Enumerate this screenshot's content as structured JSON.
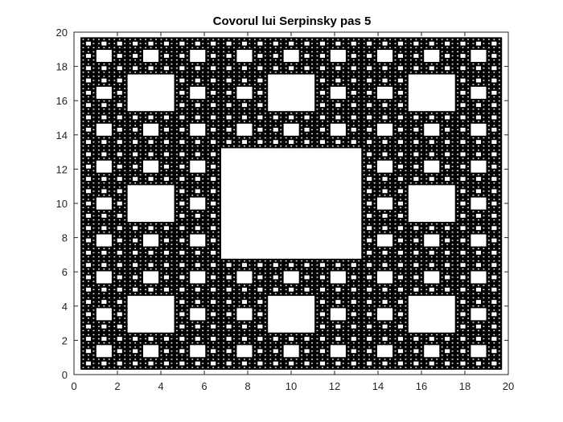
{
  "chart_data": {
    "type": "fractal",
    "title": "Covorul lui Serpinsky pas 5",
    "xlabel": "",
    "ylabel": "",
    "xlim": [
      0,
      20
    ],
    "ylim": [
      0,
      20
    ],
    "xticks": [
      0,
      2,
      4,
      6,
      8,
      10,
      12,
      14,
      16,
      18,
      20
    ],
    "yticks": [
      0,
      2,
      4,
      6,
      8,
      10,
      12,
      14,
      16,
      18,
      20
    ],
    "grid": false,
    "region": {
      "x": [
        0.3,
        19.7
      ],
      "y": [
        0.3,
        19.7
      ]
    },
    "iterations": 5,
    "fill_color": "#000000",
    "background_color": "#ffffff",
    "axis_color": "#262626"
  }
}
